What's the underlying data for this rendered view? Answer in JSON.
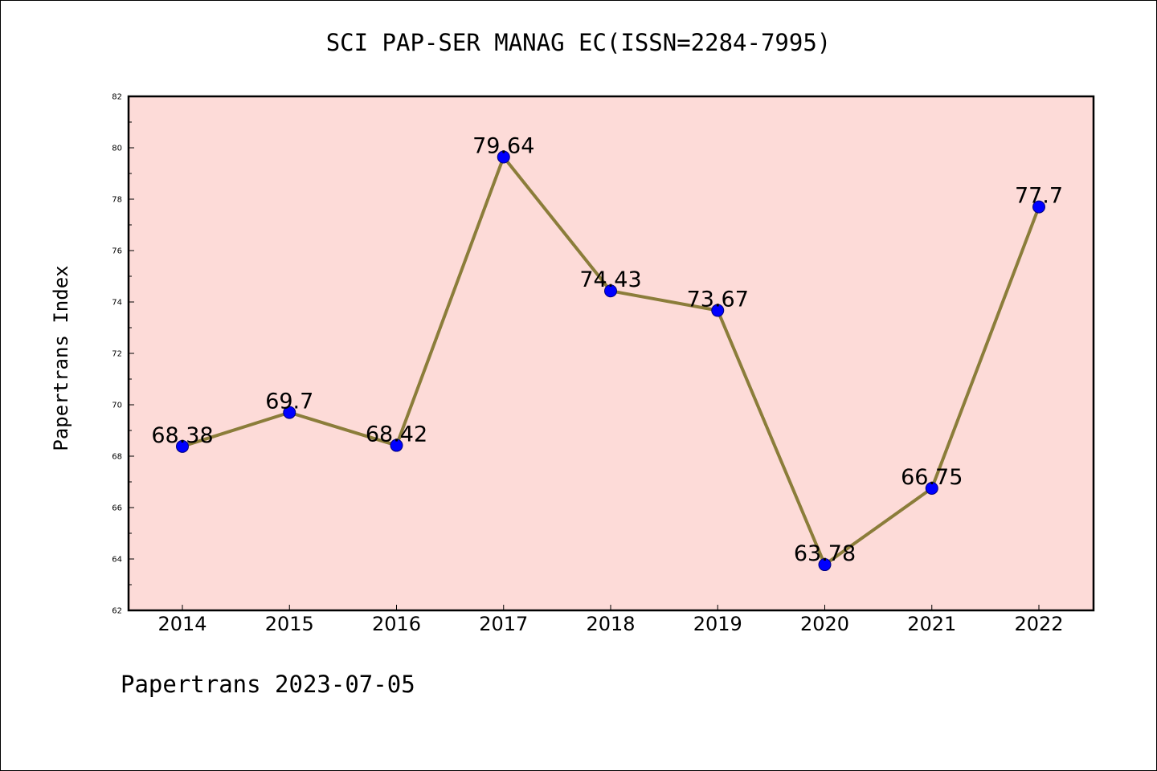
{
  "chart_data": {
    "type": "line",
    "title": "SCI PAP-SER MANAG EC(ISSN=2284-7995)",
    "ylabel": "Papertrans Index",
    "xlabel": "",
    "categories": [
      "2014",
      "2015",
      "2016",
      "2017",
      "2018",
      "2019",
      "2020",
      "2021",
      "2022"
    ],
    "values": [
      68.38,
      69.7,
      68.42,
      79.64,
      74.43,
      73.67,
      63.78,
      66.75,
      77.7
    ],
    "data_labels": [
      "68.38",
      "69.7",
      "68.42",
      "79.64",
      "74.43",
      "73.67",
      "63.78",
      "66.75",
      "77.7"
    ],
    "ylim": [
      62,
      82
    ],
    "yticks": [
      62,
      64,
      66,
      68,
      70,
      72,
      74,
      76,
      78,
      80,
      82
    ],
    "grid": false,
    "colors": {
      "plot_background": "#fddbd8",
      "line": "#8b7d3a",
      "marker": "#0000ff",
      "axis": "#000000"
    }
  },
  "footer": "Papertrans 2023-07-05"
}
